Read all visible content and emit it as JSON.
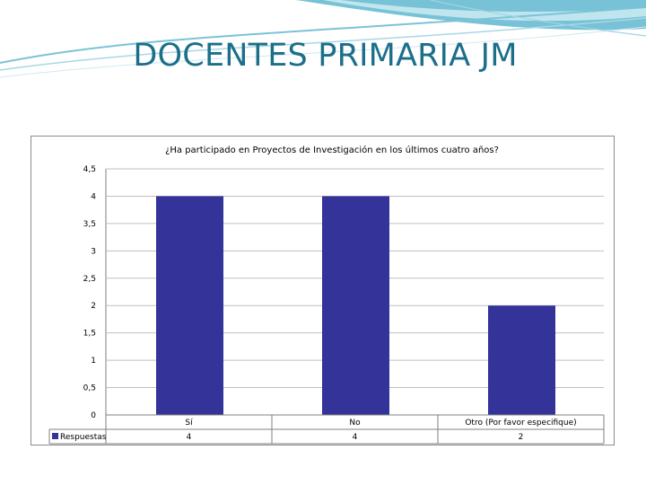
{
  "slide": {
    "title": "DOCENTES PRIMARIA JM"
  },
  "colors": {
    "bar": "#333399",
    "title": "#1b6f8a",
    "grid": "#c0c0c0",
    "swoosh_light": "#bfe6ef",
    "swoosh_dark": "#5fb7cf"
  },
  "chart_data": {
    "type": "bar",
    "title": "¿Ha participado en Proyectos de Investigación en los últimos cuatro años?",
    "categories": [
      "Sí",
      "No",
      "Otro (Por favor especifique)"
    ],
    "series": [
      {
        "name": "Respuestas",
        "values": [
          4,
          4,
          2
        ]
      }
    ],
    "ylim": [
      0,
      4.5
    ],
    "yticks": [
      "0",
      "0,5",
      "1",
      "1,5",
      "2",
      "2,5",
      "3",
      "3,5",
      "4",
      "4,5"
    ],
    "table_values": [
      "4",
      "4",
      "2"
    ],
    "grid": true,
    "legend": "bottom-left data table"
  }
}
